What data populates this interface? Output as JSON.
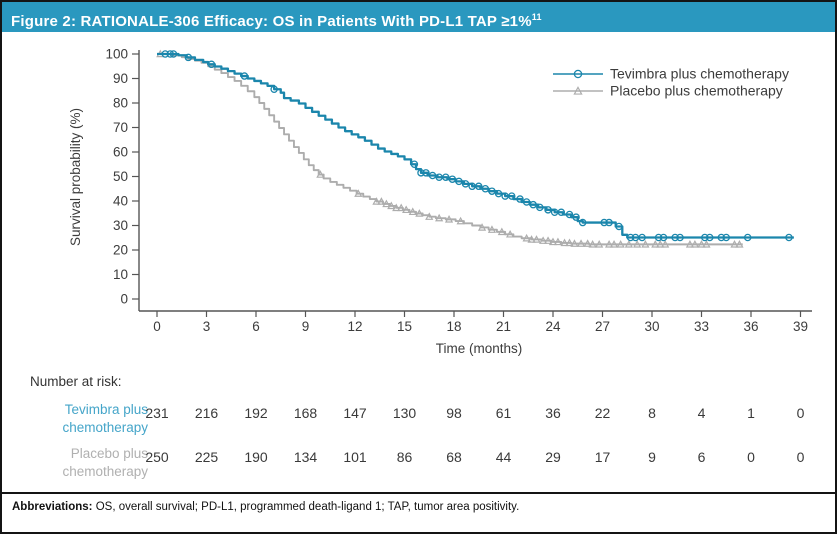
{
  "figure": {
    "title": "Figure 2: RATIONALE-306 Efficacy: OS in Patients With PD-L1 TAP ≥1%",
    "title_superscript": "11"
  },
  "colors": {
    "title_bar_bg": "#2A98BF",
    "title_text": "#FFFFFF",
    "tevimbra_curve": "#1B86AC",
    "tevimbra_label": "#45A5C9",
    "placebo_curve": "#ADADAD",
    "axis_text": "#3C3C3C",
    "border": "#141414"
  },
  "chart_data": {
    "type": "line",
    "subtype": "kaplan-meier-step",
    "title": "",
    "xlabel": "Time (months)",
    "ylabel": "Survival probability (%)",
    "xlim": [
      0,
      39
    ],
    "ylim": [
      0,
      100
    ],
    "xticks": [
      0,
      3,
      6,
      9,
      12,
      15,
      18,
      21,
      24,
      27,
      30,
      33,
      36,
      39
    ],
    "yticks": [
      0,
      10,
      20,
      30,
      40,
      50,
      60,
      70,
      80,
      90,
      100
    ],
    "grid": false,
    "legend_position": "top-right",
    "series": [
      {
        "name": "Placebo plus chemotherapy",
        "color": "#ADADAD",
        "marker": "triangle",
        "points": [
          [
            0,
            100
          ],
          [
            0.9,
            99.4
          ],
          [
            1.5,
            98.7
          ],
          [
            1.9,
            98
          ],
          [
            2.3,
            97.3
          ],
          [
            2.7,
            96.4
          ],
          [
            3.1,
            95
          ],
          [
            3.5,
            93.6
          ],
          [
            3.9,
            92.2
          ],
          [
            4.3,
            90.6
          ],
          [
            4.7,
            89
          ],
          [
            5.1,
            87
          ],
          [
            5.5,
            84.8
          ],
          [
            5.9,
            82.4
          ],
          [
            6.2,
            80
          ],
          [
            6.5,
            77.6
          ],
          [
            6.8,
            75
          ],
          [
            7.1,
            72.4
          ],
          [
            7.4,
            69.8
          ],
          [
            7.7,
            67.2
          ],
          [
            8,
            64.6
          ],
          [
            8.3,
            62
          ],
          [
            8.6,
            59.6
          ],
          [
            8.9,
            57
          ],
          [
            9.2,
            54.6
          ],
          [
            9.5,
            52.6
          ],
          [
            9.8,
            50.8
          ],
          [
            10.1,
            49.2
          ],
          [
            10.5,
            47.8
          ],
          [
            10.9,
            46.6
          ],
          [
            11.3,
            45.4
          ],
          [
            11.7,
            44.2
          ],
          [
            12.1,
            43
          ],
          [
            12.5,
            41.8
          ],
          [
            12.9,
            40.8
          ],
          [
            13.3,
            39.8
          ],
          [
            13.7,
            38.8
          ],
          [
            14.1,
            38
          ],
          [
            14.5,
            37.2
          ],
          [
            14.9,
            36.4
          ],
          [
            15.3,
            35.6
          ],
          [
            15.7,
            34.9
          ],
          [
            16.1,
            34.2
          ],
          [
            16.5,
            33.6
          ],
          [
            16.9,
            33
          ],
          [
            17.5,
            32.5
          ],
          [
            18.1,
            31.8
          ],
          [
            18.6,
            30.9
          ],
          [
            19.1,
            30
          ],
          [
            19.6,
            29.2
          ],
          [
            20.1,
            28.3
          ],
          [
            20.6,
            27.4
          ],
          [
            21.1,
            26.4
          ],
          [
            21.6,
            25.5
          ],
          [
            22.1,
            24.8
          ],
          [
            22.7,
            24.3
          ],
          [
            23.3,
            23.8
          ],
          [
            23.9,
            23.3
          ],
          [
            24.5,
            22.9
          ],
          [
            25.1,
            22.6
          ],
          [
            26.2,
            22.3
          ],
          [
            35.5,
            22.3
          ]
        ],
        "censor_months": [
          0.2,
          9.9,
          12.2,
          13.3,
          13.6,
          13.9,
          14.2,
          14.5,
          14.8,
          15.1,
          15.5,
          15.9,
          16.5,
          17.1,
          17.7,
          18.4,
          19.7,
          20.3,
          20.9,
          21.4,
          22.4,
          22.7,
          23.0,
          23.4,
          23.7,
          24.0,
          24.3,
          24.7,
          25.0,
          25.3,
          25.7,
          26.1,
          26.4,
          26.8,
          27.4,
          27.7,
          28.1,
          28.6,
          29.1,
          29.6,
          30.2,
          30.5,
          30.8,
          32.3,
          32.6,
          33.0,
          33.3,
          35.0,
          35.3
        ]
      },
      {
        "name": "Tevimbra plus chemotherapy",
        "color": "#1B86AC",
        "marker": "circle",
        "points": [
          [
            0,
            100
          ],
          [
            1.3,
            99.5
          ],
          [
            1.8,
            98.6
          ],
          [
            2.3,
            97.6
          ],
          [
            2.8,
            96.7
          ],
          [
            3.1,
            95.8
          ],
          [
            3.5,
            94.9
          ],
          [
            3.9,
            94
          ],
          [
            4.3,
            93
          ],
          [
            4.7,
            92
          ],
          [
            5.1,
            91
          ],
          [
            5.5,
            90
          ],
          [
            5.9,
            89
          ],
          [
            6.3,
            88
          ],
          [
            6.7,
            87
          ],
          [
            7.1,
            85.6
          ],
          [
            7.5,
            84.2
          ],
          [
            7.7,
            82
          ],
          [
            8.1,
            81
          ],
          [
            8.6,
            79.8
          ],
          [
            9,
            78
          ],
          [
            9.4,
            76.4
          ],
          [
            9.8,
            74.8
          ],
          [
            10.2,
            73.2
          ],
          [
            10.6,
            71.6
          ],
          [
            11,
            70
          ],
          [
            11.4,
            68.5
          ],
          [
            11.8,
            67.2
          ],
          [
            12.2,
            66
          ],
          [
            12.6,
            64.6
          ],
          [
            13,
            63
          ],
          [
            13.4,
            61.4
          ],
          [
            13.8,
            60.2
          ],
          [
            14.2,
            59.2
          ],
          [
            14.6,
            58.2
          ],
          [
            15,
            57
          ],
          [
            15.4,
            55
          ],
          [
            15.7,
            53
          ],
          [
            16,
            51.5
          ],
          [
            16.4,
            50.4
          ],
          [
            17,
            49.7
          ],
          [
            17.6,
            48.9
          ],
          [
            18.1,
            48
          ],
          [
            18.6,
            47
          ],
          [
            19.1,
            46
          ],
          [
            19.6,
            45
          ],
          [
            20.1,
            44
          ],
          [
            20.6,
            43
          ],
          [
            21.1,
            42
          ],
          [
            21.6,
            40.8
          ],
          [
            22.1,
            39.6
          ],
          [
            22.6,
            38.5
          ],
          [
            23.1,
            37.4
          ],
          [
            23.6,
            36.4
          ],
          [
            24.1,
            35.4
          ],
          [
            24.6,
            34.5
          ],
          [
            25.1,
            33.4
          ],
          [
            25.5,
            31.8
          ],
          [
            25.8,
            31.2
          ],
          [
            27.8,
            29.6
          ],
          [
            28.2,
            26.2
          ],
          [
            28.5,
            25.1
          ],
          [
            38.6,
            25.1
          ]
        ],
        "censor_months": [
          0.5,
          0.8,
          1.0,
          1.9,
          3.3,
          5.3,
          7.1,
          15.6,
          16.0,
          16.3,
          16.7,
          17.1,
          17.5,
          17.9,
          18.3,
          18.7,
          19.1,
          19.5,
          19.9,
          20.3,
          20.7,
          21.1,
          21.5,
          22.0,
          22.4,
          22.8,
          23.2,
          23.7,
          24.1,
          24.5,
          25.0,
          25.4,
          25.8,
          27.1,
          27.4,
          28.0,
          28.7,
          29.0,
          29.4,
          30.4,
          30.7,
          31.4,
          31.7,
          33.2,
          33.5,
          34.2,
          34.5,
          35.8,
          38.3
        ]
      }
    ]
  },
  "risk_table": {
    "heading": "Number at risk:",
    "timepoints": [
      0,
      3,
      6,
      9,
      12,
      15,
      18,
      21,
      24,
      27,
      30,
      33,
      36,
      39
    ],
    "rows": [
      {
        "label_lines": [
          "Tevimbra plus",
          "chemotherapy"
        ],
        "color": "#45A5C9",
        "values": [
          "231",
          "216",
          "192",
          "168",
          "147",
          "130",
          "98",
          "61",
          "36",
          "22",
          "8",
          "4",
          "1",
          "0"
        ]
      },
      {
        "label_lines": [
          "Placebo plus",
          "chemotherapy"
        ],
        "color": "#B0B0B0",
        "values": [
          "250",
          "225",
          "190",
          "134",
          "101",
          "86",
          "68",
          "44",
          "29",
          "17",
          "9",
          "6",
          "0",
          "0"
        ]
      }
    ]
  },
  "footer": {
    "label": "Abbreviations:",
    "text": " OS, overall survival; PD-L1, programmed death-ligand 1; TAP, tumor area positivity."
  }
}
